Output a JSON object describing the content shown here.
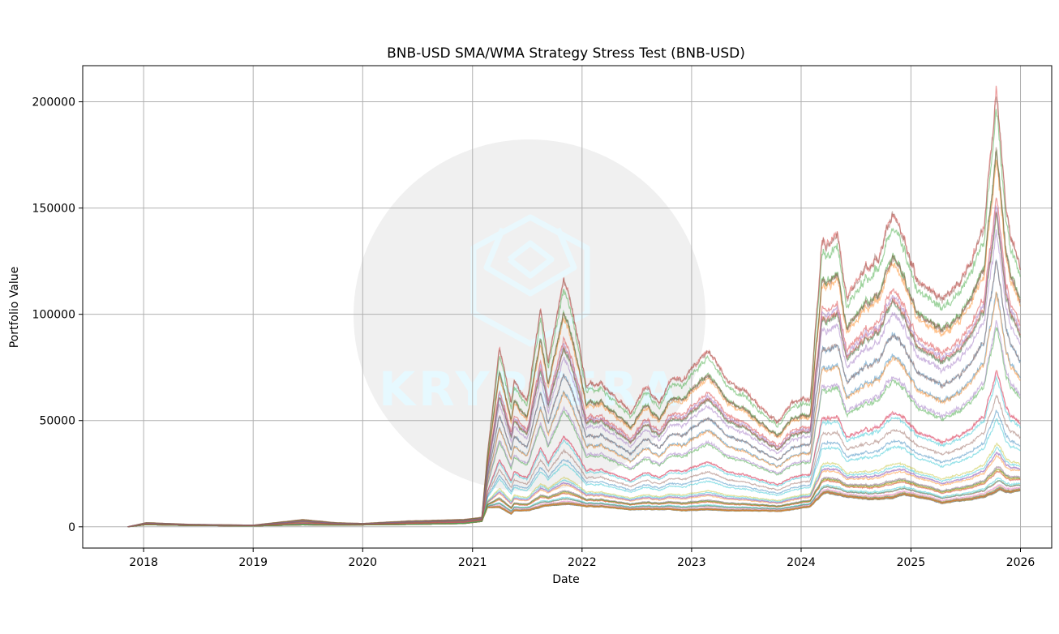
{
  "chart_data": {
    "type": "line",
    "title": "BNB-USD SMA/WMA Strategy Stress Test (BNB-USD)",
    "xlabel": "Date",
    "ylabel": "Portfolio Value",
    "x_range": [
      "2017-06-12",
      "2026-04-15"
    ],
    "ylim": [
      -10000,
      217000
    ],
    "x_ticks": [
      "2018",
      "2019",
      "2020",
      "2021",
      "2022",
      "2023",
      "2024",
      "2025",
      "2026"
    ],
    "y_ticks": [
      0,
      50000,
      100000,
      150000,
      200000
    ],
    "y_tick_labels": [
      "0",
      "50000",
      "100000",
      "150000",
      "200000"
    ],
    "grid": true,
    "series_count": 56,
    "series_opacity": 0.45,
    "start_date": "2017-11-09",
    "end_date": "2025-12-31",
    "start_value": 0,
    "envelope_dates": [
      "2017-11-09",
      "2018-01-10",
      "2018-06-01",
      "2019-01-01",
      "2019-06-15",
      "2019-10-01",
      "2020-01-01",
      "2020-06-01",
      "2020-12-01",
      "2021-02-01",
      "2021-02-20",
      "2021-04-01",
      "2021-05-10",
      "2021-05-20",
      "2021-07-01",
      "2021-08-15",
      "2021-09-10",
      "2021-11-01",
      "2021-12-01",
      "2022-01-15",
      "2022-03-01",
      "2022-05-10",
      "2022-06-15",
      "2022-08-01",
      "2022-09-15",
      "2022-11-01",
      "2022-12-01",
      "2023-01-15",
      "2023-03-01",
      "2023-05-01",
      "2023-07-01",
      "2023-09-01",
      "2023-10-15",
      "2023-12-01",
      "2024-02-01",
      "2024-03-10",
      "2024-03-25",
      "2024-05-01",
      "2024-06-01",
      "2024-08-05",
      "2024-09-15",
      "2024-11-01",
      "2024-12-05",
      "2025-01-15",
      "2025-03-01",
      "2025-04-15",
      "2025-06-01",
      "2025-07-15",
      "2025-09-01",
      "2025-10-12",
      "2025-10-25",
      "2025-11-15",
      "2025-12-31"
    ],
    "envelope_low": [
      0,
      1000,
      600,
      400,
      900,
      800,
      900,
      1100,
      1500,
      2500,
      9000,
      9000,
      6000,
      7500,
      7500,
      9000,
      10000,
      10500,
      10500,
      9500,
      9500,
      8500,
      8000,
      8200,
      8200,
      8000,
      7500,
      7800,
      8000,
      7500,
      7500,
      7500,
      7200,
      8000,
      9500,
      15000,
      16000,
      15000,
      14000,
      13000,
      13000,
      13500,
      15000,
      14000,
      13000,
      11000,
      12000,
      12500,
      14000,
      16000,
      17500,
      16000,
      17000
    ],
    "envelope_high": [
      0,
      2000,
      1200,
      800,
      3500,
      2000,
      1600,
      2800,
      3500,
      4500,
      35000,
      86000,
      60000,
      70000,
      60000,
      104000,
      80000,
      120000,
      105000,
      68000,
      70000,
      60000,
      55000,
      68000,
      60000,
      72000,
      70000,
      79000,
      85000,
      70000,
      65000,
      56000,
      50000,
      60000,
      62000,
      138000,
      135000,
      142000,
      110000,
      125000,
      130000,
      153000,
      140000,
      120000,
      115000,
      110000,
      115000,
      125000,
      145000,
      207000,
      190000,
      150000,
      125000
    ],
    "spread_power": 3.2,
    "color_cycle": [
      "#1f77b4",
      "#ff7f0e",
      "#2ca02c",
      "#d62728",
      "#9467bd",
      "#8c564b",
      "#e377c2",
      "#7f7f7f",
      "#bcbd22",
      "#17becf"
    ]
  },
  "watermark": {
    "text": "KRYPTERA",
    "circle_color": "#f0f0f0",
    "logo_color": "#ecfaff"
  }
}
